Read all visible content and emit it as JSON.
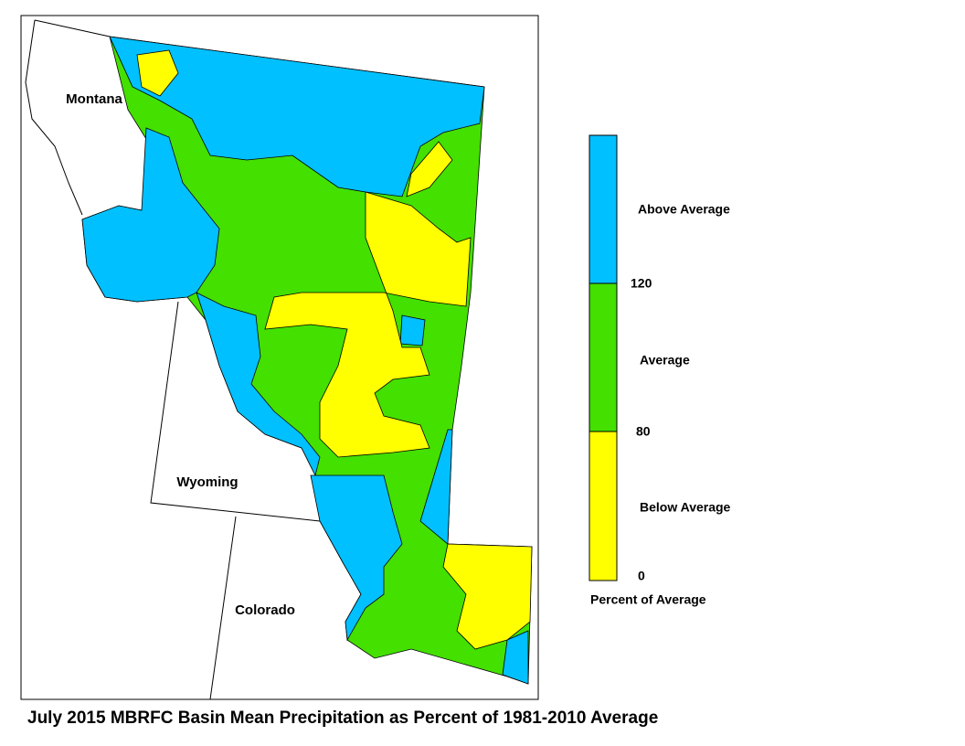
{
  "map": {
    "states": [
      "Montana",
      "Wyoming",
      "Colorado"
    ]
  },
  "legend": {
    "items": [
      {
        "label": "Above Average",
        "color": "#00c0ff"
      },
      {
        "label": "Average",
        "color": "#44e000"
      },
      {
        "label": "Below Average",
        "color": "#ffff00"
      }
    ],
    "ticks": [
      120,
      80,
      0
    ],
    "title": "Percent of Average"
  },
  "caption": "July 2015 MBRFC Basin Mean Precipitation as Percent of 1981-2010 Average"
}
